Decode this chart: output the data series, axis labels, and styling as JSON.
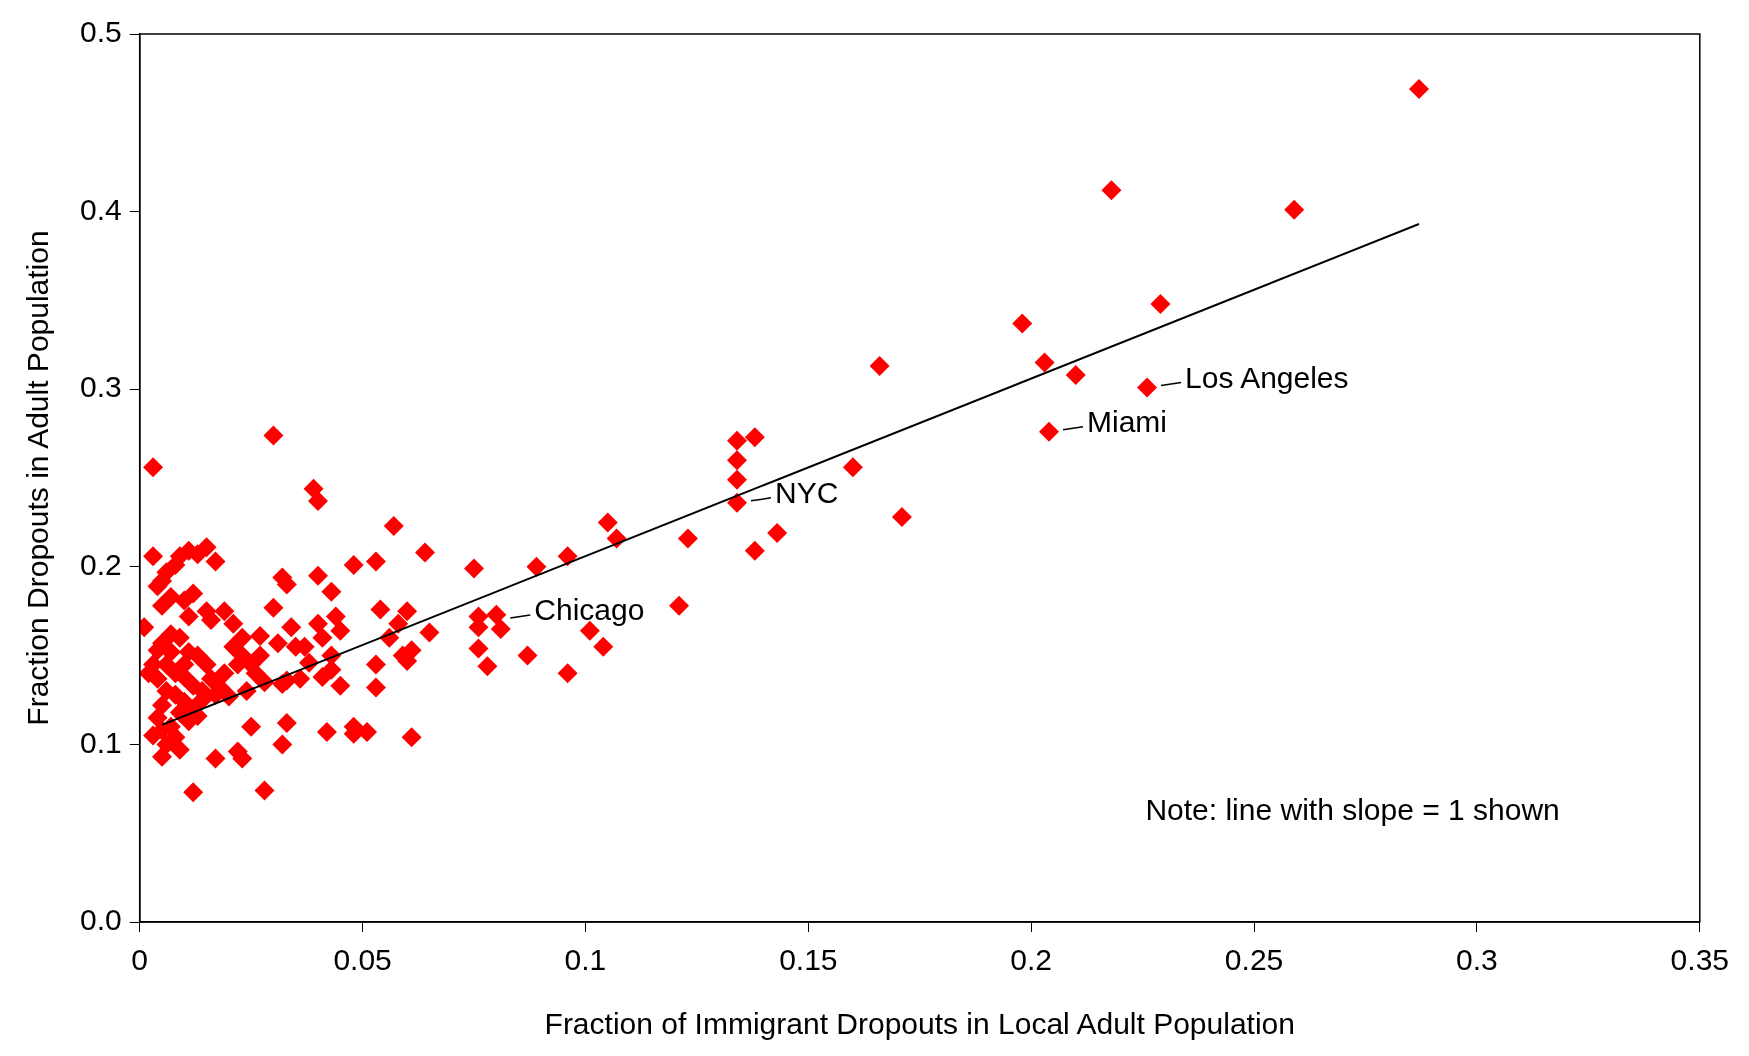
{
  "chart_data": {
    "type": "scatter",
    "xlabel": "Fraction of Immigrant Dropouts in Local Adult Population",
    "ylabel": "Fraction Dropouts in Adult Population",
    "xlim": [
      0,
      0.35
    ],
    "xticks": [
      0,
      0.05,
      0.1,
      0.15,
      0.2,
      0.25,
      0.3,
      0.35
    ],
    "ylim": [
      0,
      0.5
    ],
    "yticks": [
      {
        "value": 0,
        "label": "0.0"
      },
      {
        "value": 0.1,
        "label": "0.1"
      },
      {
        "value": 0.2,
        "label": "0.2"
      },
      {
        "value": 0.3,
        "label": "0.3"
      },
      {
        "value": 0.4,
        "label": "0.4"
      },
      {
        "value": 0.5,
        "label": "0.5"
      }
    ],
    "grid": false,
    "legend": false,
    "marker": "diamond",
    "series": [
      {
        "type": "scatter",
        "color": "#ff0000",
        "x": [
          0.287,
          0.218,
          0.259,
          0.229,
          0.198,
          0.203,
          0.21,
          0.166,
          0.226,
          0.204,
          0.138,
          0.134,
          0.134,
          0.134,
          0.134,
          0.16,
          0.171,
          0.143,
          0.138,
          0.123,
          0.121,
          0.105,
          0.107,
          0.096,
          0.089,
          0.075,
          0.101,
          0.104,
          0.096,
          0.087,
          0.078,
          0.076,
          0.076,
          0.076,
          0.08,
          0.081,
          0.003,
          0.03,
          0.039,
          0.04,
          0.057,
          0.064,
          0.053,
          0.048,
          0.04,
          0.032,
          0.033,
          0.043,
          0.054,
          0.06,
          0.044,
          0.04,
          0.058,
          0.065,
          0.045,
          0.041,
          0.056,
          0.034,
          0.03,
          0.027,
          0.031,
          0.037,
          0.061,
          0.059,
          0.06,
          0.053,
          0.043,
          0.038,
          0.035,
          0.033,
          0.032,
          0.036,
          0.041,
          0.043,
          0.045,
          0.053,
          0.033,
          0.032,
          0.042,
          0.048,
          0.048,
          0.051,
          0.061,
          0.025,
          0.028,
          0.012,
          0.017,
          0.022,
          0.023,
          0.001,
          0.003,
          0.004,
          0.005,
          0.006,
          0.008,
          0.009,
          0.011,
          0.013,
          0.015,
          0.017,
          0.005,
          0.007,
          0.01,
          0.012,
          0.011,
          0.015,
          0.016,
          0.019,
          0.021,
          0.023,
          0.019,
          0.023,
          0.025,
          0.026,
          0.028,
          0.024,
          0.02,
          0.017,
          0.015,
          0.013,
          0.011,
          0.009,
          0.007,
          0.005,
          0.003,
          0.002,
          0.004,
          0.006,
          0.008,
          0.01,
          0.012,
          0.014,
          0.006,
          0.008,
          0.01,
          0.012,
          0.005,
          0.004,
          0.007,
          0.011,
          0.013,
          0.003,
          0.005,
          0.006,
          0.009,
          0.008,
          0.005,
          0.004,
          0.007,
          0.01,
          0.016,
          0.018,
          0.021,
          0.022,
          0.027,
          0.014,
          0.009
        ],
        "values": [
          0.469,
          0.412,
          0.401,
          0.348,
          0.337,
          0.315,
          0.308,
          0.313,
          0.301,
          0.276,
          0.273,
          0.271,
          0.26,
          0.249,
          0.236,
          0.256,
          0.228,
          0.219,
          0.209,
          0.216,
          0.178,
          0.225,
          0.216,
          0.206,
          0.2,
          0.199,
          0.164,
          0.155,
          0.14,
          0.15,
          0.144,
          0.154,
          0.172,
          0.166,
          0.173,
          0.165,
          0.256,
          0.274,
          0.244,
          0.237,
          0.223,
          0.208,
          0.203,
          0.201,
          0.195,
          0.194,
          0.19,
          0.186,
          0.176,
          0.175,
          0.172,
          0.168,
          0.168,
          0.163,
          0.164,
          0.16,
          0.16,
          0.166,
          0.177,
          0.161,
          0.157,
          0.155,
          0.153,
          0.15,
          0.147,
          0.145,
          0.15,
          0.146,
          0.155,
          0.136,
          0.134,
          0.137,
          0.138,
          0.142,
          0.133,
          0.132,
          0.112,
          0.1,
          0.107,
          0.11,
          0.106,
          0.107,
          0.104,
          0.11,
          0.074,
          0.073,
          0.092,
          0.096,
          0.092,
          0.166,
          0.206,
          0.189,
          0.192,
          0.197,
          0.201,
          0.206,
          0.209,
          0.207,
          0.211,
          0.203,
          0.178,
          0.183,
          0.181,
          0.185,
          0.172,
          0.175,
          0.17,
          0.175,
          0.168,
          0.16,
          0.14,
          0.15,
          0.145,
          0.14,
          0.135,
          0.13,
          0.127,
          0.128,
          0.145,
          0.15,
          0.152,
          0.16,
          0.162,
          0.157,
          0.145,
          0.14,
          0.137,
          0.145,
          0.14,
          0.138,
          0.133,
          0.13,
          0.13,
          0.128,
          0.124,
          0.12,
          0.122,
          0.115,
          0.11,
          0.113,
          0.116,
          0.105,
          0.108,
          0.1,
          0.097,
          0.104,
          0.093,
          0.153,
          0.152,
          0.145,
          0.137,
          0.132,
          0.155,
          0.145,
          0.15,
          0.125,
          0.118
        ]
      },
      {
        "type": "line",
        "color": "#000000",
        "marker": "none",
        "x": [
          0.005,
          0.287
        ],
        "values": [
          0.111,
          0.393
        ]
      }
    ],
    "annotations": [
      {
        "text": "Los Angeles",
        "x": 0.226,
        "y": 0.301
      },
      {
        "text": "Miami",
        "x": 0.204,
        "y": 0.276
      },
      {
        "text": "NYC",
        "x": 0.134,
        "y": 0.236
      },
      {
        "text": "Chicago",
        "x": 0.08,
        "y": 0.17
      },
      "Note: line with slope = 1 shown"
    ]
  }
}
